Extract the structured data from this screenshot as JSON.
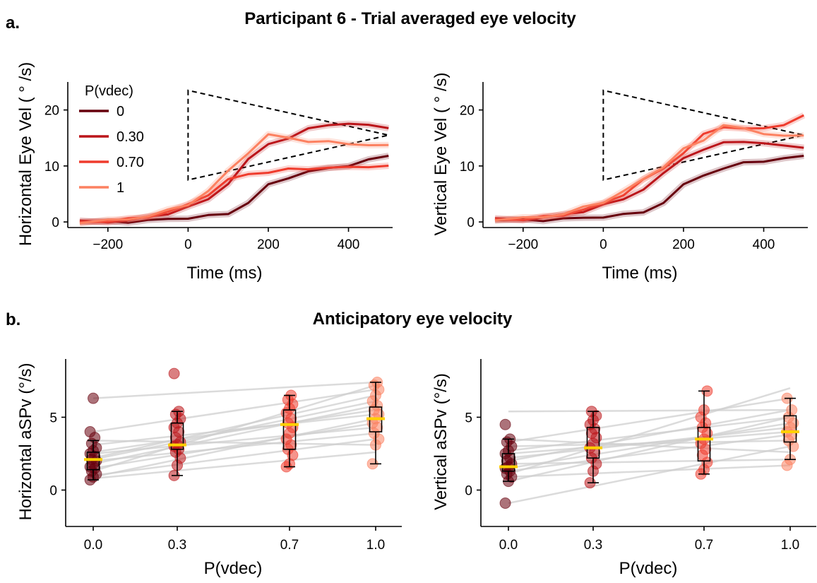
{
  "panel_a": {
    "letter": "a.",
    "title": "Participant 6 - Trial averaged eye velocity",
    "legend_title": "P(vdec)",
    "xlabel": "Time (ms)",
    "ylabel_left": "Horizontal Eye Vel ( ° /s)",
    "ylabel_right": "Vertical Eye Vel ( ° /s)",
    "xticks": [
      "−200",
      "0",
      "200",
      "400"
    ],
    "yticks": [
      "0",
      "10",
      "20"
    ]
  },
  "panel_b": {
    "letter": "b.",
    "title": "Anticipatory eye velocity",
    "xlabel": "P(vdec)",
    "ylabel_left": "Horizontal aSPv (°/s)",
    "ylabel_right": "Vertical aSPv (°/s)",
    "xticks": [
      "0.0",
      "0.3",
      "0.7",
      "1.0"
    ],
    "yticks": [
      "0",
      "5"
    ]
  },
  "chart_data": [
    {
      "type": "line",
      "title": "Participant 6 - Trial averaged eye velocity",
      "xlabel": "Time (ms)",
      "ylabel": "Horizontal Eye Vel ( ° /s)",
      "xlim": [
        -300,
        510
      ],
      "ylim": [
        -1,
        25
      ],
      "legend_title": "P(vdec)",
      "legend_position": "top-left",
      "x": [
        -270,
        -200,
        -150,
        -100,
        -50,
        0,
        50,
        100,
        150,
        200,
        250,
        300,
        350,
        400,
        450,
        500
      ],
      "series": [
        {
          "name": "0",
          "color": "#67000d",
          "values": [
            0,
            0,
            0.1,
            0.2,
            0.5,
            0.8,
            1.0,
            1.5,
            3.5,
            6.5,
            8.0,
            9.0,
            9.5,
            10.2,
            11.0,
            11.8
          ]
        },
        {
          "name": "0.30",
          "color": "#bb151a",
          "values": [
            0,
            0.1,
            0.3,
            0.8,
            1.6,
            2.6,
            4.0,
            7.0,
            11.0,
            14.0,
            15.0,
            16.5,
            17.5,
            17.5,
            17.2,
            17.0
          ]
        },
        {
          "name": "0.70",
          "color": "#ef3c2d",
          "values": [
            0,
            0.2,
            0.4,
            1.0,
            1.8,
            3.0,
            5.0,
            7.5,
            8.5,
            9.0,
            9.3,
            9.5,
            9.8,
            9.6,
            10.0,
            10.0
          ]
        },
        {
          "name": "1",
          "color": "#fc8161",
          "values": [
            0,
            0.2,
            0.5,
            1.1,
            2.0,
            3.2,
            5.5,
            9.0,
            12.5,
            15.5,
            15.0,
            14.5,
            14.2,
            14.0,
            13.8,
            13.5
          ]
        }
      ],
      "annotation": {
        "type": "dashed-triangle",
        "x": [
          0,
          0,
          500
        ],
        "y": [
          23.5,
          7.5,
          15.5
        ]
      }
    },
    {
      "type": "line",
      "xlabel": "Time (ms)",
      "ylabel": "Vertical Eye Vel ( ° /s)",
      "xlim": [
        -300,
        510
      ],
      "ylim": [
        -1,
        25
      ],
      "x": [
        -270,
        -200,
        -150,
        -100,
        -50,
        0,
        50,
        100,
        150,
        200,
        250,
        300,
        350,
        400,
        450,
        500
      ],
      "series": [
        {
          "name": "0",
          "color": "#67000d",
          "values": [
            0.3,
            0.3,
            0.4,
            0.5,
            0.7,
            1.0,
            1.2,
            1.8,
            3.5,
            6.5,
            8.5,
            9.5,
            10.5,
            11.0,
            11.2,
            11.8
          ]
        },
        {
          "name": "0.30",
          "color": "#bb151a",
          "values": [
            0.4,
            0.5,
            0.8,
            1.2,
            2.0,
            3.0,
            4.0,
            6.0,
            8.5,
            11.5,
            13.0,
            14.0,
            14.5,
            14.0,
            13.5,
            13.5
          ]
        },
        {
          "name": "0.70",
          "color": "#ef3c2d",
          "values": [
            0.5,
            0.5,
            0.8,
            1.3,
            2.2,
            3.2,
            5.0,
            7.5,
            9.5,
            12.5,
            15.5,
            17.0,
            16.8,
            16.5,
            17.5,
            19.0
          ]
        },
        {
          "name": "1",
          "color": "#fc8161",
          "values": [
            0.5,
            0.6,
            0.9,
            1.5,
            2.5,
            3.6,
            5.5,
            7.5,
            10.0,
            13.0,
            14.5,
            17.5,
            16.5,
            15.8,
            15.5,
            15.2
          ]
        }
      ],
      "annotation": {
        "type": "dashed-triangle",
        "x": [
          0,
          0,
          500
        ],
        "y": [
          23.5,
          7.5,
          15.5
        ]
      }
    },
    {
      "type": "box",
      "title": "Anticipatory eye velocity",
      "xlabel": "P(vdec)",
      "ylabel": "Horizontal aSPv (°/s)",
      "ylim": [
        -2.5,
        9.0
      ],
      "categories": [
        "0.0",
        "0.3",
        "0.7",
        "1.0"
      ],
      "colors": [
        "#67000d",
        "#bb151a",
        "#ef3c2d",
        "#fc8161"
      ],
      "median_color": "#ffd000",
      "boxes": [
        {
          "min": 0.7,
          "q1": 1.4,
          "median": 2.1,
          "q3": 2.6,
          "max": 3.4
        },
        {
          "min": 1.0,
          "q1": 2.8,
          "median": 3.1,
          "q3": 4.6,
          "max": 5.4
        },
        {
          "min": 1.6,
          "q1": 2.8,
          "median": 4.5,
          "q3": 5.5,
          "max": 6.5
        },
        {
          "min": 1.8,
          "q1": 4.0,
          "median": 4.9,
          "q3": 5.7,
          "max": 7.4
        }
      ],
      "points": [
        [
          0.7,
          0.9,
          1.1,
          1.3,
          1.5,
          1.6,
          1.8,
          2.0,
          2.1,
          2.3,
          2.5,
          2.7,
          2.9,
          3.2,
          3.6,
          4.0,
          6.3
        ],
        [
          1.0,
          1.7,
          2.2,
          2.6,
          2.8,
          3.0,
          3.1,
          3.3,
          3.6,
          4.0,
          4.3,
          4.6,
          4.9,
          5.2,
          5.4,
          8.0
        ],
        [
          1.6,
          1.8,
          2.4,
          2.8,
          3.1,
          3.5,
          3.9,
          4.3,
          4.6,
          4.9,
          5.3,
          5.6,
          5.9,
          6.2,
          6.5
        ],
        [
          1.8,
          3.1,
          3.5,
          3.9,
          4.3,
          4.6,
          4.9,
          5.2,
          5.5,
          5.8,
          6.1,
          6.5,
          6.9,
          7.2,
          7.4
        ]
      ],
      "subject_lines": [
        [
          6.3,
          7.4
        ],
        [
          1.3,
          7.2
        ],
        [
          4.0,
          6.9
        ],
        [
          2.2,
          6.5
        ],
        [
          2.1,
          6.1
        ],
        [
          1.8,
          5.8
        ],
        [
          2.6,
          5.5
        ],
        [
          3.1,
          5.2
        ],
        [
          0.9,
          4.9
        ],
        [
          1.5,
          4.6
        ],
        [
          2.5,
          4.3
        ],
        [
          2.0,
          3.9
        ],
        [
          1.0,
          3.5
        ],
        [
          3.4,
          3.1
        ],
        [
          0.8,
          2.6
        ]
      ]
    },
    {
      "type": "box",
      "xlabel": "P(vdec)",
      "ylabel": "Vertical aSPv (°/s)",
      "ylim": [
        -2.5,
        9.0
      ],
      "categories": [
        "0.0",
        "0.3",
        "0.7",
        "1.0"
      ],
      "colors": [
        "#67000d",
        "#bb151a",
        "#ef3c2d",
        "#fc8161"
      ],
      "median_color": "#ffd000",
      "boxes": [
        {
          "min": 0.6,
          "q1": 1.3,
          "median": 1.6,
          "q3": 2.5,
          "max": 3.5
        },
        {
          "min": 0.5,
          "q1": 2.2,
          "median": 2.9,
          "q3": 4.3,
          "max": 5.4
        },
        {
          "min": 1.1,
          "q1": 2.0,
          "median": 3.5,
          "q3": 4.3,
          "max": 6.8
        },
        {
          "min": 2.1,
          "q1": 3.3,
          "median": 4.0,
          "q3": 5.1,
          "max": 6.3
        }
      ],
      "points": [
        [
          -0.9,
          0.6,
          0.9,
          1.1,
          1.3,
          1.5,
          1.6,
          1.8,
          2.0,
          2.2,
          2.5,
          2.7,
          3.0,
          3.3,
          3.5,
          4.5
        ],
        [
          0.5,
          1.3,
          1.8,
          2.2,
          2.6,
          2.9,
          3.2,
          3.6,
          3.9,
          4.2,
          4.5,
          4.8,
          5.1,
          5.4
        ],
        [
          1.1,
          1.4,
          1.9,
          2.4,
          2.8,
          3.2,
          3.5,
          3.9,
          4.3,
          4.6,
          5.0,
          5.5,
          6.8
        ],
        [
          1.7,
          2.1,
          3.0,
          3.4,
          3.8,
          4.0,
          4.3,
          4.6,
          5.0,
          5.5,
          6.3
        ]
      ],
      "subject_lines": [
        [
          -0.9,
          3.0
        ],
        [
          0.6,
          5.0
        ],
        [
          1.1,
          7.0
        ],
        [
          1.5,
          4.6
        ],
        [
          2.0,
          5.5
        ],
        [
          2.5,
          4.0
        ],
        [
          3.0,
          3.4
        ],
        [
          3.3,
          6.3
        ],
        [
          1.8,
          2.1
        ],
        [
          5.4,
          5.5
        ],
        [
          1.3,
          3.8
        ],
        [
          2.2,
          4.3
        ],
        [
          0.9,
          1.7
        ],
        [
          2.7,
          5.0
        ],
        [
          3.5,
          2.6
        ]
      ]
    }
  ]
}
